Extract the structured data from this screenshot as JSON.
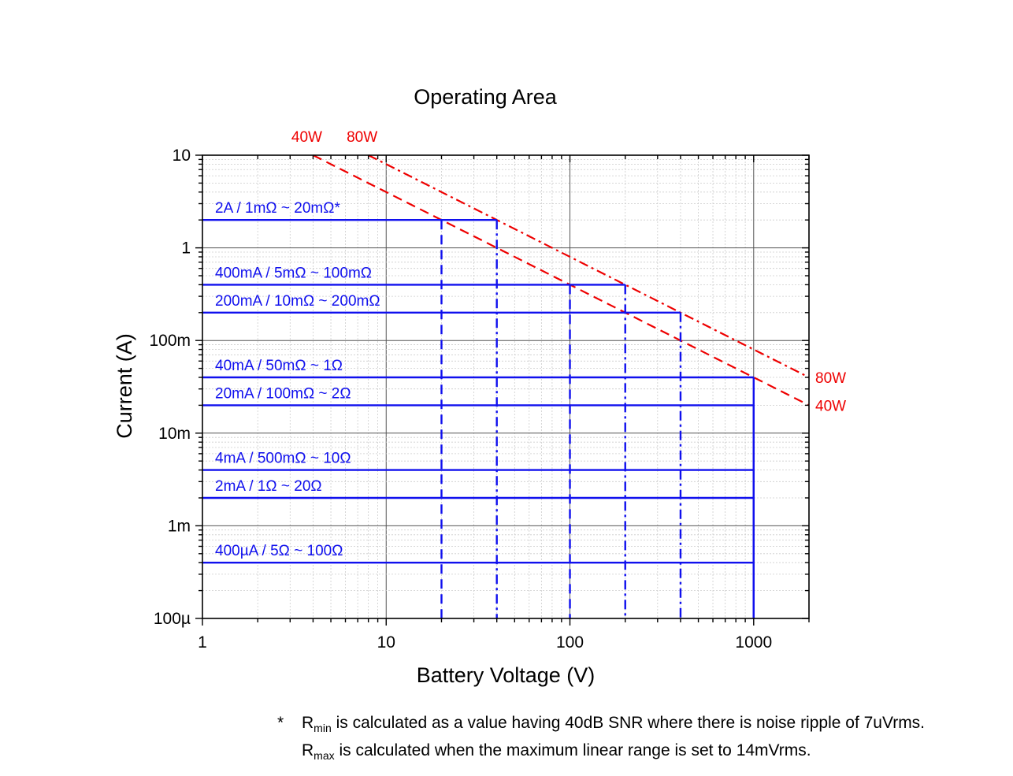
{
  "chart_data": {
    "type": "line",
    "title": "Operating Area",
    "xlabel": "Battery Voltage (V)",
    "ylabel": "Current (A)",
    "x_scale": "log",
    "y_scale": "log",
    "xlim": [
      1,
      2000
    ],
    "ylim": [
      0.0001,
      10
    ],
    "x_ticks": [
      {
        "value": 1,
        "label": "1"
      },
      {
        "value": 10,
        "label": "10"
      },
      {
        "value": 100,
        "label": "100"
      },
      {
        "value": 1000,
        "label": "1000"
      }
    ],
    "y_ticks": [
      {
        "value": 10,
        "label": "10"
      },
      {
        "value": 1,
        "label": "1"
      },
      {
        "value": 0.1,
        "label": "100m"
      },
      {
        "value": 0.01,
        "label": "10m"
      },
      {
        "value": 0.001,
        "label": "1m"
      },
      {
        "value": 0.0001,
        "label": "100µ"
      }
    ],
    "grid": true,
    "colors": {
      "ranges": "#1010ee",
      "power_limits": "#ee0000",
      "grid_major": "#555555",
      "grid_minor": "#cccccc"
    },
    "ranges": [
      {
        "label": "2A / 1mΩ ~ 20mΩ*",
        "current": 2,
        "vmax": 40,
        "break": 20,
        "break_style": "dash",
        "end_style": "dashdot"
      },
      {
        "label": "400mA / 5mΩ ~ 100mΩ",
        "current": 0.4,
        "vmax": 200,
        "break": 100,
        "break_style": "dash",
        "end_style": "dashdot"
      },
      {
        "label": "200mA / 10mΩ ~ 200mΩ",
        "current": 0.2,
        "vmax": 400,
        "break": null,
        "break_style": null,
        "end_style": "dashdot"
      },
      {
        "label": "40mA / 50mΩ ~ 1Ω",
        "current": 0.04,
        "vmax": 1000,
        "break": null,
        "break_style": null,
        "end_style": "solid"
      },
      {
        "label": "20mA / 100mΩ ~ 2Ω",
        "current": 0.02,
        "vmax": 1000,
        "break": null,
        "break_style": null,
        "end_style": "solid"
      },
      {
        "label": "4mA / 500mΩ ~ 10Ω",
        "current": 0.004,
        "vmax": 1000,
        "break": null,
        "break_style": null,
        "end_style": "solid"
      },
      {
        "label": "2mA / 1Ω ~ 20Ω",
        "current": 0.002,
        "vmax": 1000,
        "break": null,
        "break_style": null,
        "end_style": "solid"
      },
      {
        "label": "400µA / 5Ω ~ 100Ω",
        "current": 0.0004,
        "vmax": 1000,
        "break": null,
        "break_style": null,
        "end_style": "solid"
      }
    ],
    "power_limits": [
      {
        "name": "40W",
        "watts": 40,
        "x_start": 4,
        "x_end": 2000,
        "style": "dash"
      },
      {
        "name": "80W",
        "watts": 80,
        "x_start": 8,
        "x_end": 2000,
        "style": "dashdot"
      }
    ],
    "power_labels_top": [
      {
        "text": "40W",
        "x": 4
      },
      {
        "text": "80W",
        "x": 8
      }
    ],
    "power_labels_right": [
      {
        "text": "80W",
        "y": 0.04
      },
      {
        "text": "40W",
        "y": 0.02
      }
    ]
  },
  "footnote": {
    "marker": "*",
    "line1_symbol": "R",
    "line1_sub": "min",
    "line1_text": " is calculated as a value having 40dB SNR where there is noise ripple of 7uVrms.",
    "line2_symbol": "R",
    "line2_sub": "max",
    "line2_text": " is calculated when the maximum linear range is set to 14mVrms."
  }
}
